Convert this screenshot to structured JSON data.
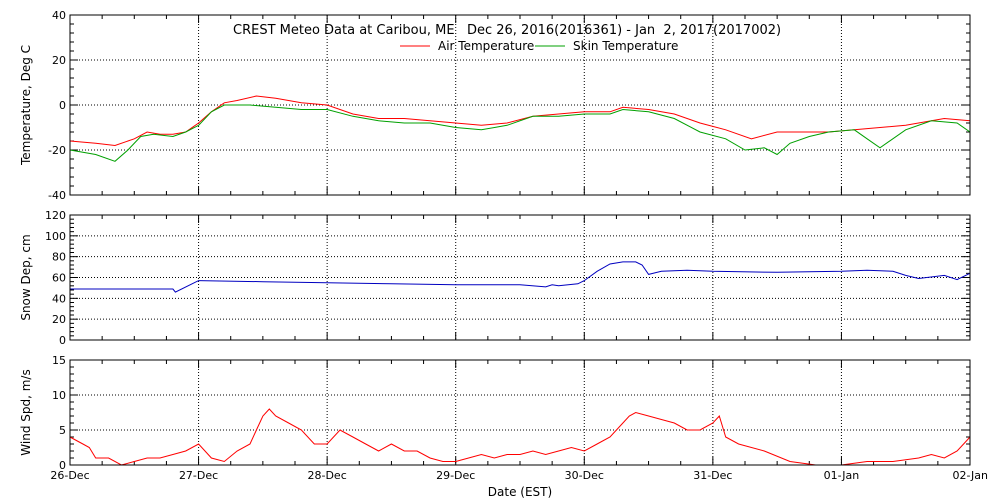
{
  "chart_data": {
    "type": "line",
    "title": "CREST Meteo Data at Caribou, ME   Dec 26, 2016(2016361) - Jan  2, 2017(2017002)",
    "xlabel": "Date (EST)",
    "x_ticks": [
      "26-Dec",
      "27-Dec",
      "28-Dec",
      "29-Dec",
      "30-Dec",
      "31-Dec",
      "01-Jan",
      "02-Jan"
    ],
    "x_range_days": [
      0,
      7
    ],
    "grid": true,
    "legend_position": "top-center",
    "panels": [
      {
        "ylabel": "Temperature, Deg C",
        "ylim": [
          -40,
          40
        ],
        "yticks": [
          -40,
          -20,
          0,
          20,
          40
        ],
        "series": [
          {
            "name": "Air Temperature",
            "color": "#ff0000",
            "x": [
              0,
              0.2,
              0.35,
              0.5,
              0.6,
              0.7,
              0.8,
              0.9,
              1.0,
              1.1,
              1.2,
              1.3,
              1.45,
              1.6,
              1.8,
              2.0,
              2.2,
              2.4,
              2.6,
              2.8,
              3.0,
              3.2,
              3.4,
              3.6,
              3.8,
              4.0,
              4.1,
              4.2,
              4.3,
              4.5,
              4.7,
              4.9,
              5.1,
              5.3,
              5.5,
              5.7,
              5.9,
              6.1,
              6.3,
              6.5,
              6.7,
              6.8,
              7.0
            ],
            "y": [
              -16,
              -17,
              -18,
              -15,
              -12,
              -13,
              -13,
              -12,
              -8,
              -3,
              1,
              2,
              4,
              3,
              1,
              0,
              -4,
              -6,
              -6,
              -7,
              -8,
              -9,
              -8,
              -5,
              -4,
              -3,
              -3,
              -3,
              -1,
              -2,
              -4,
              -8,
              -11,
              -15,
              -12,
              -12,
              -12,
              -11,
              -10,
              -9,
              -7,
              -6,
              -7
            ]
          },
          {
            "name": "Skin Temperature",
            "color": "#00a000",
            "x": [
              0,
              0.2,
              0.35,
              0.45,
              0.55,
              0.65,
              0.8,
              0.9,
              1.0,
              1.1,
              1.2,
              1.4,
              1.6,
              1.8,
              2.0,
              2.2,
              2.4,
              2.6,
              2.8,
              3.0,
              3.2,
              3.4,
              3.6,
              3.8,
              4.0,
              4.2,
              4.3,
              4.5,
              4.7,
              4.9,
              5.1,
              5.25,
              5.4,
              5.5,
              5.6,
              5.75,
              5.9,
              6.1,
              6.2,
              6.3,
              6.5,
              6.7,
              6.9,
              7.0
            ],
            "y": [
              -20,
              -22,
              -25,
              -20,
              -14,
              -13,
              -14,
              -12,
              -9,
              -3,
              0,
              0,
              -1,
              -2,
              -2,
              -5,
              -7,
              -8,
              -8,
              -10,
              -11,
              -9,
              -5,
              -5,
              -4,
              -4,
              -2,
              -3,
              -6,
              -12,
              -15,
              -20,
              -19,
              -22,
              -17,
              -14,
              -12,
              -11,
              -15,
              -19,
              -11,
              -7,
              -8,
              -12
            ]
          }
        ]
      },
      {
        "ylabel": "Snow Dep, cm",
        "ylim": [
          0,
          120
        ],
        "yticks": [
          0,
          20,
          40,
          60,
          80,
          100,
          120
        ],
        "series": [
          {
            "name": "",
            "color": "#0000c0",
            "x": [
              0,
              0.8,
              0.82,
              0.95,
              1.0,
              1.5,
              2.0,
              2.5,
              3.0,
              3.5,
              3.7,
              3.75,
              3.8,
              3.95,
              4.0,
              4.1,
              4.2,
              4.3,
              4.4,
              4.45,
              4.5,
              4.6,
              4.8,
              5.0,
              5.5,
              6.0,
              6.2,
              6.4,
              6.5,
              6.6,
              6.8,
              6.9,
              7.0
            ],
            "y": [
              49,
              49,
              46,
              54,
              57,
              56,
              55,
              54,
              53,
              53,
              51,
              53,
              52,
              54,
              57,
              66,
              73,
              75,
              75,
              72,
              63,
              66,
              67,
              66,
              65,
              66,
              67,
              66,
              62,
              59,
              62,
              58,
              64
            ]
          }
        ]
      },
      {
        "ylabel": "Wind Spd, m/s",
        "ylim": [
          0,
          15
        ],
        "yticks": [
          0,
          5,
          10,
          15
        ],
        "series": [
          {
            "name": "",
            "color": "#ff0000",
            "x": [
              0,
              0.05,
              0.1,
              0.15,
              0.2,
              0.3,
              0.4,
              0.5,
              0.6,
              0.7,
              0.8,
              0.9,
              1.0,
              1.05,
              1.1,
              1.2,
              1.3,
              1.4,
              1.45,
              1.5,
              1.55,
              1.6,
              1.7,
              1.8,
              1.9,
              2.0,
              2.1,
              2.2,
              2.3,
              2.4,
              2.5,
              2.6,
              2.7,
              2.8,
              2.9,
              3.0,
              3.1,
              3.2,
              3.3,
              3.4,
              3.5,
              3.6,
              3.7,
              3.8,
              3.9,
              4.0,
              4.1,
              4.2,
              4.3,
              4.35,
              4.4,
              4.5,
              4.6,
              4.7,
              4.8,
              4.9,
              5.0,
              5.05,
              5.1,
              5.2,
              5.4,
              5.6,
              5.8,
              6.0,
              6.2,
              6.4,
              6.6,
              6.7,
              6.8,
              6.9,
              6.95,
              7.0
            ],
            "y": [
              4,
              3.5,
              3,
              2.5,
              1,
              1,
              0,
              0.5,
              1,
              1,
              1.5,
              2,
              3,
              2,
              1,
              0.5,
              2,
              3,
              5,
              7,
              8,
              7,
              6,
              5,
              3,
              3,
              5,
              4,
              3,
              2,
              3,
              2,
              2,
              1,
              0.5,
              0.5,
              1,
              1.5,
              1,
              1.5,
              1.5,
              2,
              1.5,
              2,
              2.5,
              2,
              3,
              4,
              6,
              7,
              7.5,
              7,
              6.5,
              6,
              5,
              5,
              6,
              7,
              4,
              3,
              2,
              0.5,
              0,
              0,
              0.5,
              0.5,
              1,
              1.5,
              1,
              2,
              3,
              4
            ]
          }
        ]
      }
    ]
  }
}
